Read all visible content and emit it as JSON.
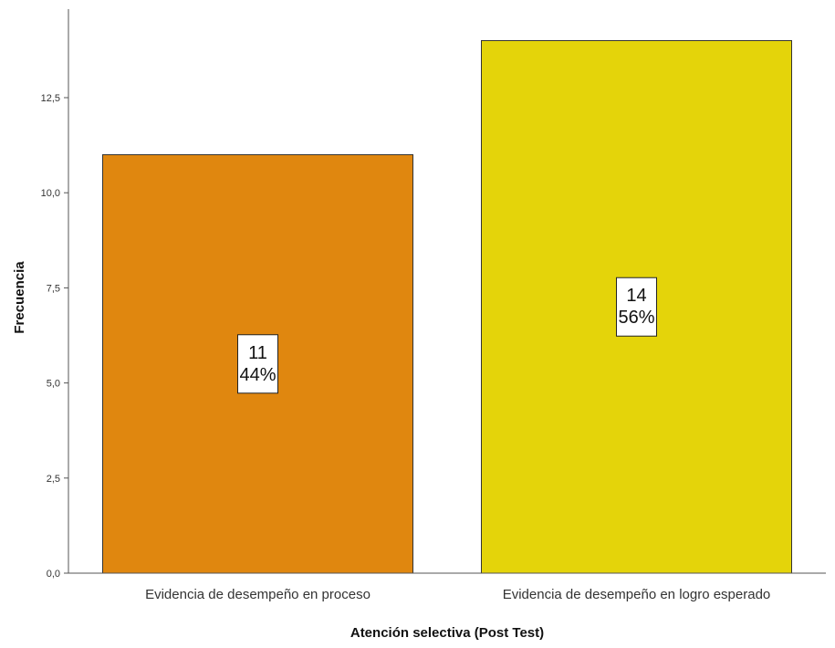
{
  "chart_data": {
    "type": "bar",
    "categories": [
      "Evidencia de desempeño en proceso",
      "Evidencia de desempeño en logro esperado"
    ],
    "values": [
      11,
      14
    ],
    "percent_labels": [
      "44%",
      "56%"
    ],
    "count_labels": [
      "11",
      "14"
    ],
    "colors": [
      "#e0870f",
      "#e4d40a"
    ],
    "xlabel": "Atención selectiva (Post Test)",
    "ylabel": "Frecuencia",
    "ylim": [
      0,
      14
    ],
    "yticks": [
      0,
      2.5,
      5.0,
      7.5,
      10.0,
      12.5
    ],
    "ytick_labels": [
      "0,0",
      "2,5",
      "5,0",
      "7,5",
      "10,0",
      "12,5"
    ],
    "grid": false,
    "legend": "none"
  }
}
